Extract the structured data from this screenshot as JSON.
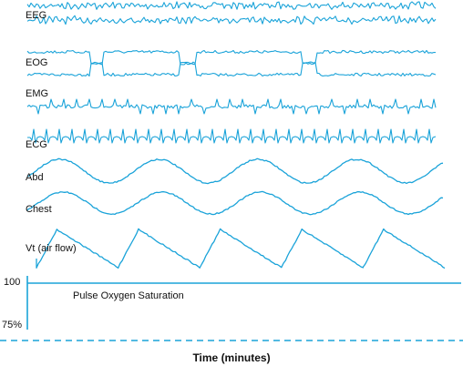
{
  "colors": {
    "trace": "#1aa3d9",
    "text": "#111111",
    "background": "#ffffff"
  },
  "chart_data": {
    "type": "line",
    "xlabel": "Time (minutes)",
    "channels": [
      {
        "name": "EEG",
        "kind": "noise",
        "amplitude": 1.0
      },
      {
        "name": "EOG",
        "kind": "noise-with-eye-movements",
        "amplitude": 0.8,
        "events": 3
      },
      {
        "name": "EMG",
        "kind": "spiky-noise",
        "amplitude": 1.0
      },
      {
        "name": "ECG",
        "kind": "heartbeat",
        "beats": 32
      },
      {
        "name": "Abd",
        "kind": "sinusoid",
        "cycles": 4
      },
      {
        "name": "Chest",
        "kind": "sinusoid",
        "cycles": 4
      },
      {
        "name": "Vt (air flow)",
        "kind": "sawtooth-wave",
        "cycles": 5
      }
    ],
    "oxygen_saturation": {
      "label": "Pulse Oxygen Saturation",
      "y_ticks": [
        "100",
        "75%"
      ],
      "value_percent": 100
    }
  }
}
